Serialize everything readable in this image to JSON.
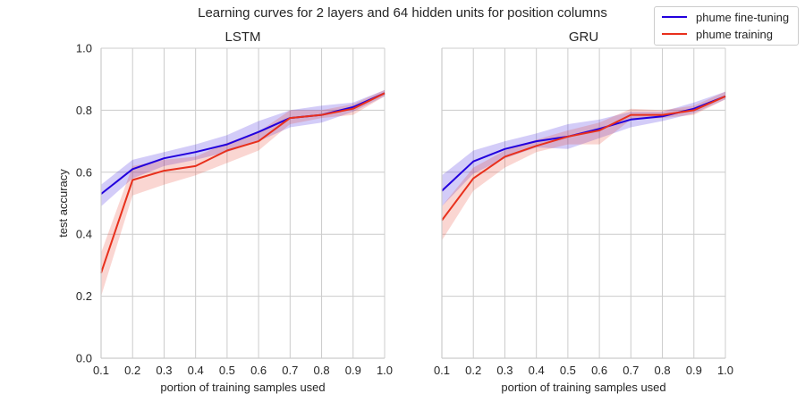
{
  "suptitle": "Learning curves for 2 layers and 64 hidden units for position columns",
  "legend": [
    {
      "name": "phume fine-tuning",
      "color": "#2200dd"
    },
    {
      "name": "phume training",
      "color": "#e8301c"
    }
  ],
  "chart_data": [
    {
      "type": "line",
      "title": "LSTM",
      "xlabel": "portion of training samples used",
      "ylabel": "test accuracy",
      "xlim": [
        0.1,
        1.0
      ],
      "ylim": [
        0.0,
        1.0
      ],
      "xticks": [
        "0.1",
        "0.2",
        "0.3",
        "0.4",
        "0.5",
        "0.6",
        "0.7",
        "0.8",
        "0.9",
        "1.0"
      ],
      "yticks": [
        "0.0",
        "0.2",
        "0.4",
        "0.6",
        "0.8",
        "1.0"
      ],
      "grid": true,
      "x": [
        0.1,
        0.2,
        0.3,
        0.4,
        0.5,
        0.6,
        0.7,
        0.8,
        0.9,
        1.0
      ],
      "series": [
        {
          "name": "phume fine-tuning",
          "color": "#2200dd",
          "values": [
            0.53,
            0.61,
            0.645,
            0.665,
            0.69,
            0.73,
            0.775,
            0.785,
            0.81,
            0.855
          ],
          "lower": [
            0.49,
            0.58,
            0.62,
            0.64,
            0.665,
            0.7,
            0.745,
            0.76,
            0.795,
            0.845
          ],
          "upper": [
            0.56,
            0.64,
            0.665,
            0.69,
            0.72,
            0.765,
            0.8,
            0.815,
            0.825,
            0.865
          ]
        },
        {
          "name": "phume training",
          "color": "#e8301c",
          "values": [
            0.275,
            0.575,
            0.605,
            0.62,
            0.67,
            0.7,
            0.775,
            0.785,
            0.805,
            0.855
          ],
          "lower": [
            0.2,
            0.525,
            0.56,
            0.59,
            0.63,
            0.67,
            0.755,
            0.775,
            0.785,
            0.845
          ],
          "upper": [
            0.34,
            0.62,
            0.64,
            0.65,
            0.695,
            0.73,
            0.8,
            0.8,
            0.82,
            0.865
          ]
        }
      ]
    },
    {
      "type": "line",
      "title": "GRU",
      "xlabel": "portion of training samples used",
      "ylabel": "",
      "xlim": [
        0.1,
        1.0
      ],
      "ylim": [
        0.0,
        1.0
      ],
      "xticks": [
        "0.1",
        "0.2",
        "0.3",
        "0.4",
        "0.5",
        "0.6",
        "0.7",
        "0.8",
        "0.9",
        "1.0"
      ],
      "yticks": [],
      "grid": true,
      "x": [
        0.1,
        0.2,
        0.3,
        0.4,
        0.5,
        0.6,
        0.7,
        0.8,
        0.9,
        1.0
      ],
      "series": [
        {
          "name": "phume fine-tuning",
          "color": "#2200dd",
          "values": [
            0.54,
            0.635,
            0.675,
            0.7,
            0.715,
            0.74,
            0.77,
            0.78,
            0.805,
            0.845
          ],
          "lower": [
            0.49,
            0.595,
            0.645,
            0.68,
            0.675,
            0.71,
            0.745,
            0.765,
            0.79,
            0.835
          ],
          "upper": [
            0.59,
            0.67,
            0.7,
            0.725,
            0.755,
            0.77,
            0.795,
            0.795,
            0.825,
            0.86
          ]
        },
        {
          "name": "phume training",
          "color": "#e8301c",
          "values": [
            0.445,
            0.58,
            0.65,
            0.685,
            0.715,
            0.735,
            0.785,
            0.785,
            0.8,
            0.845
          ],
          "lower": [
            0.38,
            0.54,
            0.615,
            0.665,
            0.69,
            0.69,
            0.77,
            0.775,
            0.785,
            0.835
          ],
          "upper": [
            0.49,
            0.615,
            0.67,
            0.705,
            0.735,
            0.76,
            0.805,
            0.8,
            0.815,
            0.86
          ]
        }
      ]
    }
  ]
}
